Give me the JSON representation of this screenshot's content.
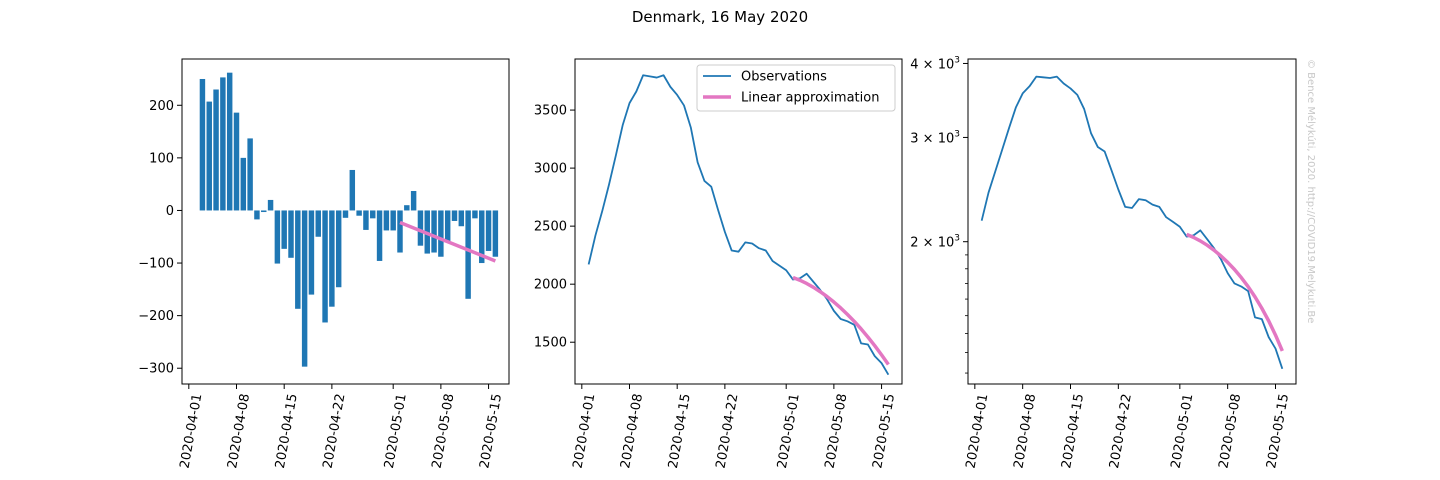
{
  "figure": {
    "title": "Denmark, 16 May 2020",
    "credit": "© Bence Mélykúti, 2020. http://COVID19.Melykuti.Be"
  },
  "chart_data": [
    {
      "type": "bar",
      "name": "daily-change",
      "x": [
        "2020-04-03",
        "2020-04-04",
        "2020-04-05",
        "2020-04-06",
        "2020-04-07",
        "2020-04-08",
        "2020-04-09",
        "2020-04-10",
        "2020-04-11",
        "2020-04-12",
        "2020-04-13",
        "2020-04-14",
        "2020-04-15",
        "2020-04-16",
        "2020-04-17",
        "2020-04-18",
        "2020-04-19",
        "2020-04-20",
        "2020-04-21",
        "2020-04-22",
        "2020-04-23",
        "2020-04-24",
        "2020-04-25",
        "2020-04-26",
        "2020-04-27",
        "2020-04-28",
        "2020-04-29",
        "2020-04-30",
        "2020-05-01",
        "2020-05-02",
        "2020-05-03",
        "2020-05-04",
        "2020-05-05",
        "2020-05-06",
        "2020-05-07",
        "2020-05-08",
        "2020-05-09",
        "2020-05-10",
        "2020-05-11",
        "2020-05-12",
        "2020-05-13",
        "2020-05-14",
        "2020-05-15",
        "2020-05-16"
      ],
      "values": [
        250,
        207,
        230,
        253,
        262,
        186,
        100,
        137,
        -17,
        -3,
        20,
        -101,
        -73,
        -90,
        -187,
        -297,
        -160,
        -50,
        -213,
        -183,
        -146,
        -14,
        77,
        -10,
        -37,
        -15,
        -96,
        -38,
        -38,
        -80,
        10,
        37,
        -67,
        -82,
        -80,
        -88,
        -60,
        -20,
        -30,
        -168,
        -15,
        -100,
        -77,
        -88
      ],
      "overlay": {
        "x": [
          "2020-05-02",
          "2020-05-16"
        ],
        "values": [
          -23,
          -96
        ]
      },
      "xticks": [
        "2020-04-01",
        "2020-04-08",
        "2020-04-15",
        "2020-04-22",
        "2020-05-01",
        "2020-05-08",
        "2020-05-15"
      ],
      "yticks": [
        -300,
        -200,
        -100,
        0,
        100,
        200
      ],
      "ylim": [
        -330,
        288
      ],
      "colors": {
        "bars": "#1f77b4",
        "overlay": "#e377c2"
      }
    },
    {
      "type": "line",
      "name": "active-cases-linear",
      "series": [
        {
          "name": "Observations",
          "x": [
            "2020-04-02",
            "2020-04-03",
            "2020-04-04",
            "2020-04-05",
            "2020-04-06",
            "2020-04-07",
            "2020-04-08",
            "2020-04-09",
            "2020-04-10",
            "2020-04-11",
            "2020-04-12",
            "2020-04-13",
            "2020-04-14",
            "2020-04-15",
            "2020-04-16",
            "2020-04-17",
            "2020-04-18",
            "2020-04-19",
            "2020-04-20",
            "2020-04-21",
            "2020-04-22",
            "2020-04-23",
            "2020-04-24",
            "2020-04-25",
            "2020-04-26",
            "2020-04-27",
            "2020-04-28",
            "2020-04-29",
            "2020-04-30",
            "2020-05-01",
            "2020-05-02",
            "2020-05-03",
            "2020-05-04",
            "2020-05-05",
            "2020-05-06",
            "2020-05-07",
            "2020-05-08",
            "2020-05-09",
            "2020-05-10",
            "2020-05-11",
            "2020-05-12",
            "2020-05-13",
            "2020-05-14",
            "2020-05-15",
            "2020-05-16"
          ],
          "values": [
            2170,
            2420,
            2630,
            2860,
            3110,
            3370,
            3560,
            3660,
            3800,
            3790,
            3780,
            3800,
            3700,
            3630,
            3540,
            3350,
            3050,
            2890,
            2840,
            2640,
            2450,
            2290,
            2280,
            2360,
            2350,
            2310,
            2290,
            2200,
            2160,
            2120,
            2040,
            2050,
            2090,
            2020,
            1950,
            1870,
            1770,
            1700,
            1680,
            1650,
            1490,
            1480,
            1380,
            1320,
            1220
          ],
          "color": "#1f77b4"
        },
        {
          "name": "Linear approximation",
          "x": [
            "2020-05-02",
            "2020-05-03",
            "2020-05-04",
            "2020-05-05",
            "2020-05-06",
            "2020-05-07",
            "2020-05-08",
            "2020-05-09",
            "2020-05-10",
            "2020-05-11",
            "2020-05-12",
            "2020-05-13",
            "2020-05-14",
            "2020-05-15",
            "2020-05-16"
          ],
          "values": [
            2058,
            2034,
            2006,
            1973,
            1935,
            1893,
            1846,
            1795,
            1739,
            1679,
            1614,
            1544,
            1470,
            1391,
            1308
          ],
          "color": "#e377c2"
        }
      ],
      "xticks": [
        "2020-04-01",
        "2020-04-08",
        "2020-04-15",
        "2020-04-22",
        "2020-05-01",
        "2020-05-08",
        "2020-05-15"
      ],
      "yticks": [
        1500,
        2000,
        2500,
        3000,
        3500
      ],
      "ylim": [
        1140,
        3940
      ],
      "legend": "top-right"
    },
    {
      "type": "line",
      "name": "active-cases-log",
      "yscale": "log",
      "series": [
        {
          "name": "Observations",
          "x": [
            "2020-04-02",
            "2020-04-03",
            "2020-04-04",
            "2020-04-05",
            "2020-04-06",
            "2020-04-07",
            "2020-04-08",
            "2020-04-09",
            "2020-04-10",
            "2020-04-11",
            "2020-04-12",
            "2020-04-13",
            "2020-04-14",
            "2020-04-15",
            "2020-04-16",
            "2020-04-17",
            "2020-04-18",
            "2020-04-19",
            "2020-04-20",
            "2020-04-21",
            "2020-04-22",
            "2020-04-23",
            "2020-04-24",
            "2020-04-25",
            "2020-04-26",
            "2020-04-27",
            "2020-04-28",
            "2020-04-29",
            "2020-04-30",
            "2020-05-01",
            "2020-05-02",
            "2020-05-03",
            "2020-05-04",
            "2020-05-05",
            "2020-05-06",
            "2020-05-07",
            "2020-05-08",
            "2020-05-09",
            "2020-05-10",
            "2020-05-11",
            "2020-05-12",
            "2020-05-13",
            "2020-05-14",
            "2020-05-15",
            "2020-05-16"
          ],
          "values": [
            2170,
            2420,
            2630,
            2860,
            3110,
            3370,
            3560,
            3660,
            3800,
            3790,
            3780,
            3800,
            3700,
            3630,
            3540,
            3350,
            3050,
            2890,
            2840,
            2640,
            2450,
            2290,
            2280,
            2360,
            2350,
            2310,
            2290,
            2200,
            2160,
            2120,
            2040,
            2050,
            2090,
            2020,
            1950,
            1870,
            1770,
            1700,
            1680,
            1650,
            1490,
            1480,
            1380,
            1320,
            1220
          ],
          "color": "#1f77b4"
        },
        {
          "name": "Linear approximation",
          "x": [
            "2020-05-02",
            "2020-05-03",
            "2020-05-04",
            "2020-05-05",
            "2020-05-06",
            "2020-05-07",
            "2020-05-08",
            "2020-05-09",
            "2020-05-10",
            "2020-05-11",
            "2020-05-12",
            "2020-05-13",
            "2020-05-14",
            "2020-05-15",
            "2020-05-16"
          ],
          "values": [
            2058,
            2034,
            2006,
            1973,
            1935,
            1893,
            1846,
            1795,
            1739,
            1679,
            1614,
            1544,
            1470,
            1391,
            1308
          ],
          "color": "#e377c2"
        }
      ],
      "xticks": [
        "2020-04-01",
        "2020-04-08",
        "2020-04-15",
        "2020-04-22",
        "2020-05-01",
        "2020-05-08",
        "2020-05-15"
      ],
      "yticks": [
        {
          "value": 2000,
          "mantissa": "2",
          "exp": "3"
        },
        {
          "value": 3000,
          "mantissa": "3",
          "exp": "3"
        },
        {
          "value": 4000,
          "mantissa": "4",
          "exp": "3"
        }
      ],
      "ylim": [
        1150,
        4070
      ]
    }
  ]
}
